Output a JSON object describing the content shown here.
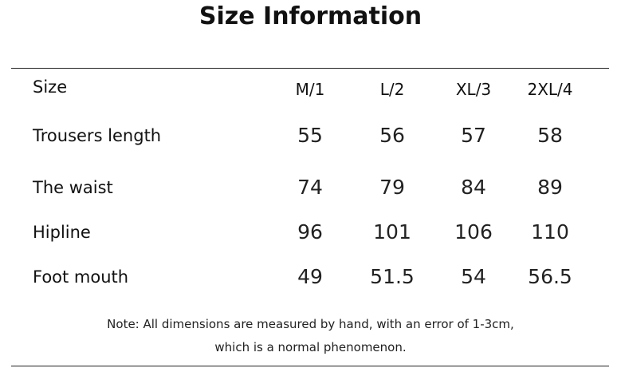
{
  "header": {
    "title": "Size Information"
  },
  "table": {
    "columns": [
      "Size",
      "M/1",
      "L/2",
      "XL/3",
      "2XL/4"
    ],
    "rows": [
      [
        "Trousers length",
        "55",
        "56",
        "57",
        "58"
      ],
      [
        "The waist",
        "74",
        "79",
        "84",
        "89"
      ],
      [
        "Hipline",
        "96",
        "101",
        "106",
        "110"
      ],
      [
        "Foot mouth",
        "49",
        "51.5",
        "54",
        "56.5"
      ]
    ]
  },
  "note": [
    "Note: All dimensions are measured by hand, with an error of 1-3cm,",
    "which is a normal phenomenon."
  ]
}
